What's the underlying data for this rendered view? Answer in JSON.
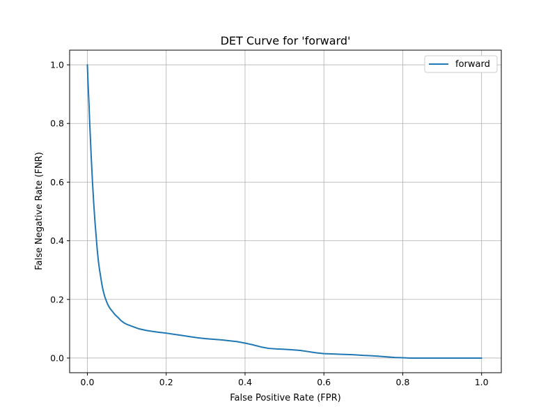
{
  "chart_data": {
    "type": "line",
    "title": "DET Curve for 'forward'",
    "xlabel": "False Positive Rate (FPR)",
    "ylabel": "False Negative Rate (FNR)",
    "xlim": [
      -0.045,
      1.05
    ],
    "ylim": [
      -0.05,
      1.05
    ],
    "xticks": [
      0.0,
      0.2,
      0.4,
      0.6,
      0.8,
      1.0
    ],
    "xtick_labels": [
      "0.0",
      "0.2",
      "0.4",
      "0.6",
      "0.8",
      "1.0"
    ],
    "yticks": [
      0.0,
      0.2,
      0.4,
      0.6,
      0.8,
      1.0
    ],
    "ytick_labels": [
      "0.0",
      "0.2",
      "0.4",
      "0.6",
      "0.8",
      "1.0"
    ],
    "grid": true,
    "legend_position": "top-right",
    "series": [
      {
        "name": "forward",
        "color": "#1f77b4",
        "x": [
          0.0,
          0.002,
          0.004,
          0.006,
          0.008,
          0.01,
          0.013,
          0.016,
          0.019,
          0.022,
          0.025,
          0.028,
          0.031,
          0.034,
          0.037,
          0.04,
          0.044,
          0.048,
          0.052,
          0.057,
          0.063,
          0.07,
          0.078,
          0.085,
          0.093,
          0.1,
          0.11,
          0.12,
          0.13,
          0.14,
          0.15,
          0.16,
          0.18,
          0.2,
          0.22,
          0.24,
          0.26,
          0.28,
          0.3,
          0.32,
          0.34,
          0.36,
          0.38,
          0.4,
          0.42,
          0.44,
          0.46,
          0.48,
          0.5,
          0.52,
          0.54,
          0.56,
          0.58,
          0.6,
          0.62,
          0.64,
          0.66,
          0.68,
          0.7,
          0.72,
          0.74,
          0.76,
          0.78,
          0.8,
          0.82,
          0.85,
          0.9,
          0.95,
          1.0
        ],
        "y": [
          1.0,
          0.93,
          0.87,
          0.8,
          0.74,
          0.68,
          0.6,
          0.53,
          0.47,
          0.42,
          0.37,
          0.33,
          0.3,
          0.275,
          0.25,
          0.23,
          0.21,
          0.195,
          0.182,
          0.17,
          0.16,
          0.148,
          0.138,
          0.128,
          0.12,
          0.115,
          0.11,
          0.105,
          0.1,
          0.097,
          0.094,
          0.092,
          0.088,
          0.085,
          0.081,
          0.077,
          0.073,
          0.069,
          0.066,
          0.064,
          0.062,
          0.059,
          0.056,
          0.051,
          0.045,
          0.038,
          0.033,
          0.031,
          0.03,
          0.028,
          0.026,
          0.022,
          0.018,
          0.015,
          0.014,
          0.013,
          0.012,
          0.011,
          0.009,
          0.008,
          0.006,
          0.004,
          0.002,
          0.001,
          0.0,
          0.0,
          0.0,
          0.0,
          0.0
        ]
      }
    ]
  }
}
